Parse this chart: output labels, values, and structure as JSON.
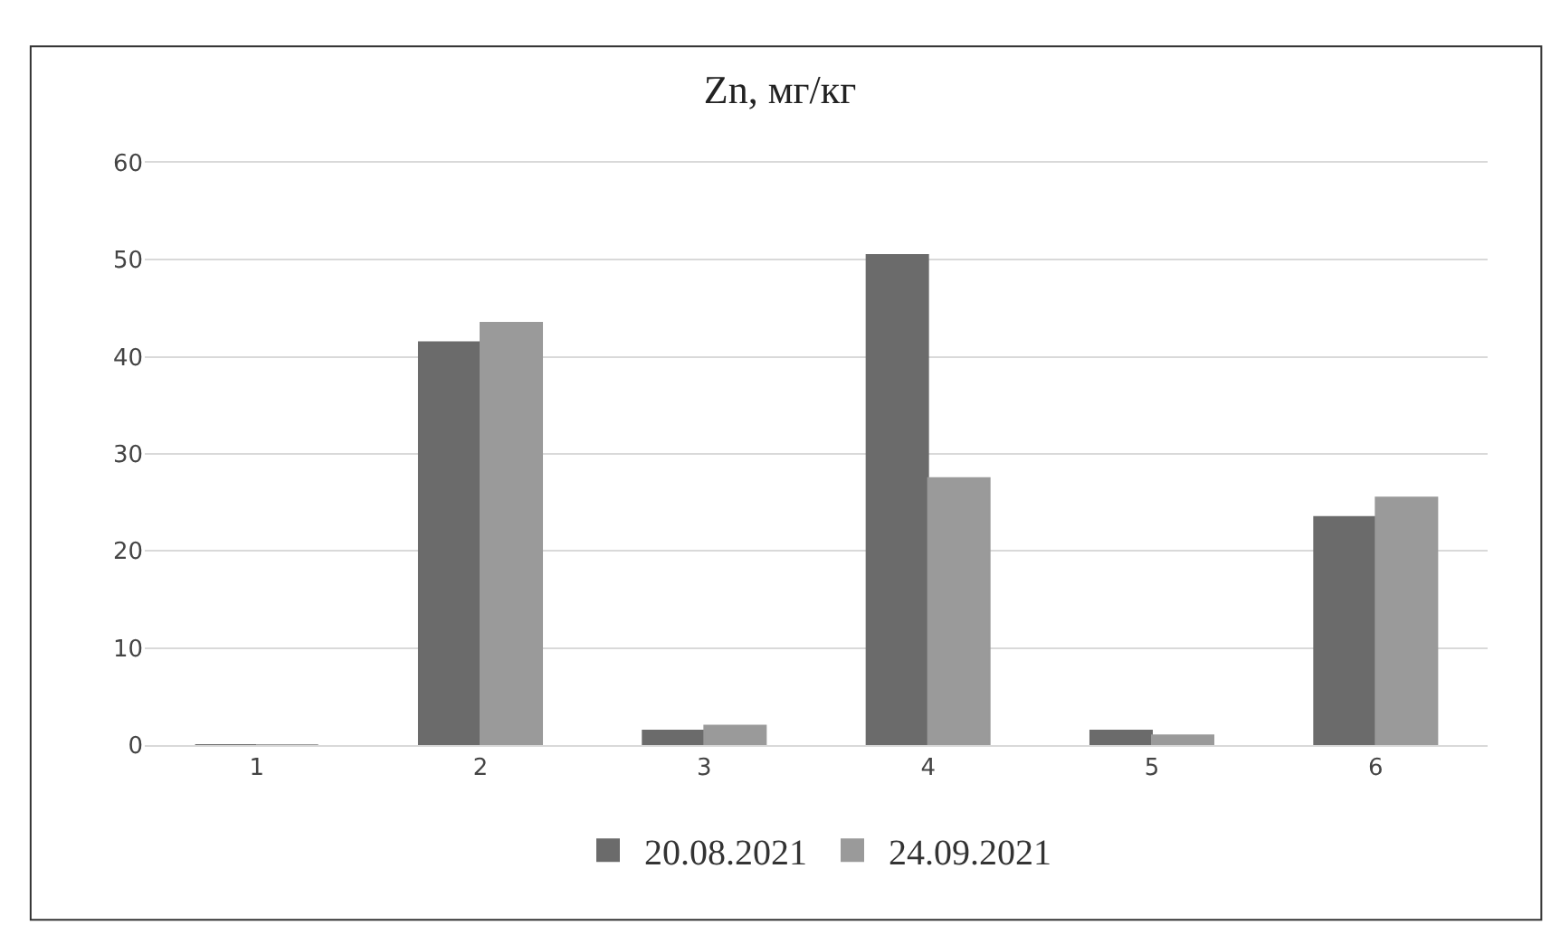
{
  "chart_data": {
    "type": "bar",
    "title": "Zn, мг/кг",
    "categories": [
      "1",
      "2",
      "3",
      "4",
      "5",
      "6"
    ],
    "series": [
      {
        "name": "20.08.2021",
        "color": "#6b6b6b",
        "values": [
          0,
          41.5,
          1.5,
          50.5,
          1.5,
          23.5
        ]
      },
      {
        "name": "24.09.2021",
        "color": "#9a9a9a",
        "values": [
          0,
          43.5,
          2,
          27.5,
          1,
          25.5
        ]
      }
    ],
    "ylim": [
      0,
      60
    ],
    "yticks": [
      0,
      10,
      20,
      30,
      40,
      50,
      60
    ],
    "grid": "y",
    "legend": "bottom"
  }
}
